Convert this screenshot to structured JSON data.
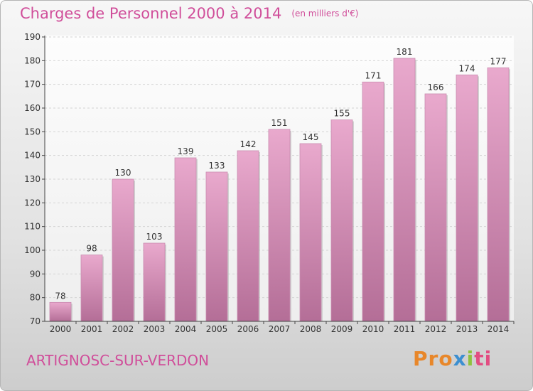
{
  "header": {
    "title": "Charges de Personnel 2000 à 2014",
    "unit": "(en milliers d'€)"
  },
  "footer": {
    "city": "ARTIGNOSC-SUR-VERDON",
    "logo": {
      "p1": "Pro",
      "p2": "x",
      "p3": "i",
      "p4": "ti"
    }
  },
  "colors": {
    "bar_light": "#e9a9cd",
    "bar_dark": "#b46e97",
    "title": "#d04e9a"
  },
  "chart_data": {
    "type": "bar",
    "title": "Charges de Personnel 2000 à 2014",
    "subtitle": "(en milliers d'€)",
    "categories": [
      "2000",
      "2001",
      "2002",
      "2003",
      "2004",
      "2005",
      "2006",
      "2007",
      "2008",
      "2009",
      "2010",
      "2011",
      "2012",
      "2013",
      "2014"
    ],
    "values": [
      78,
      98,
      130,
      103,
      139,
      133,
      142,
      151,
      145,
      155,
      171,
      181,
      166,
      174,
      177
    ],
    "ylim": [
      70,
      190
    ],
    "yticks": [
      "70",
      "80",
      "90",
      "100",
      "110",
      "120",
      "130",
      "140",
      "150",
      "160",
      "170",
      "180",
      "190"
    ],
    "grid": true,
    "legend": "none"
  }
}
